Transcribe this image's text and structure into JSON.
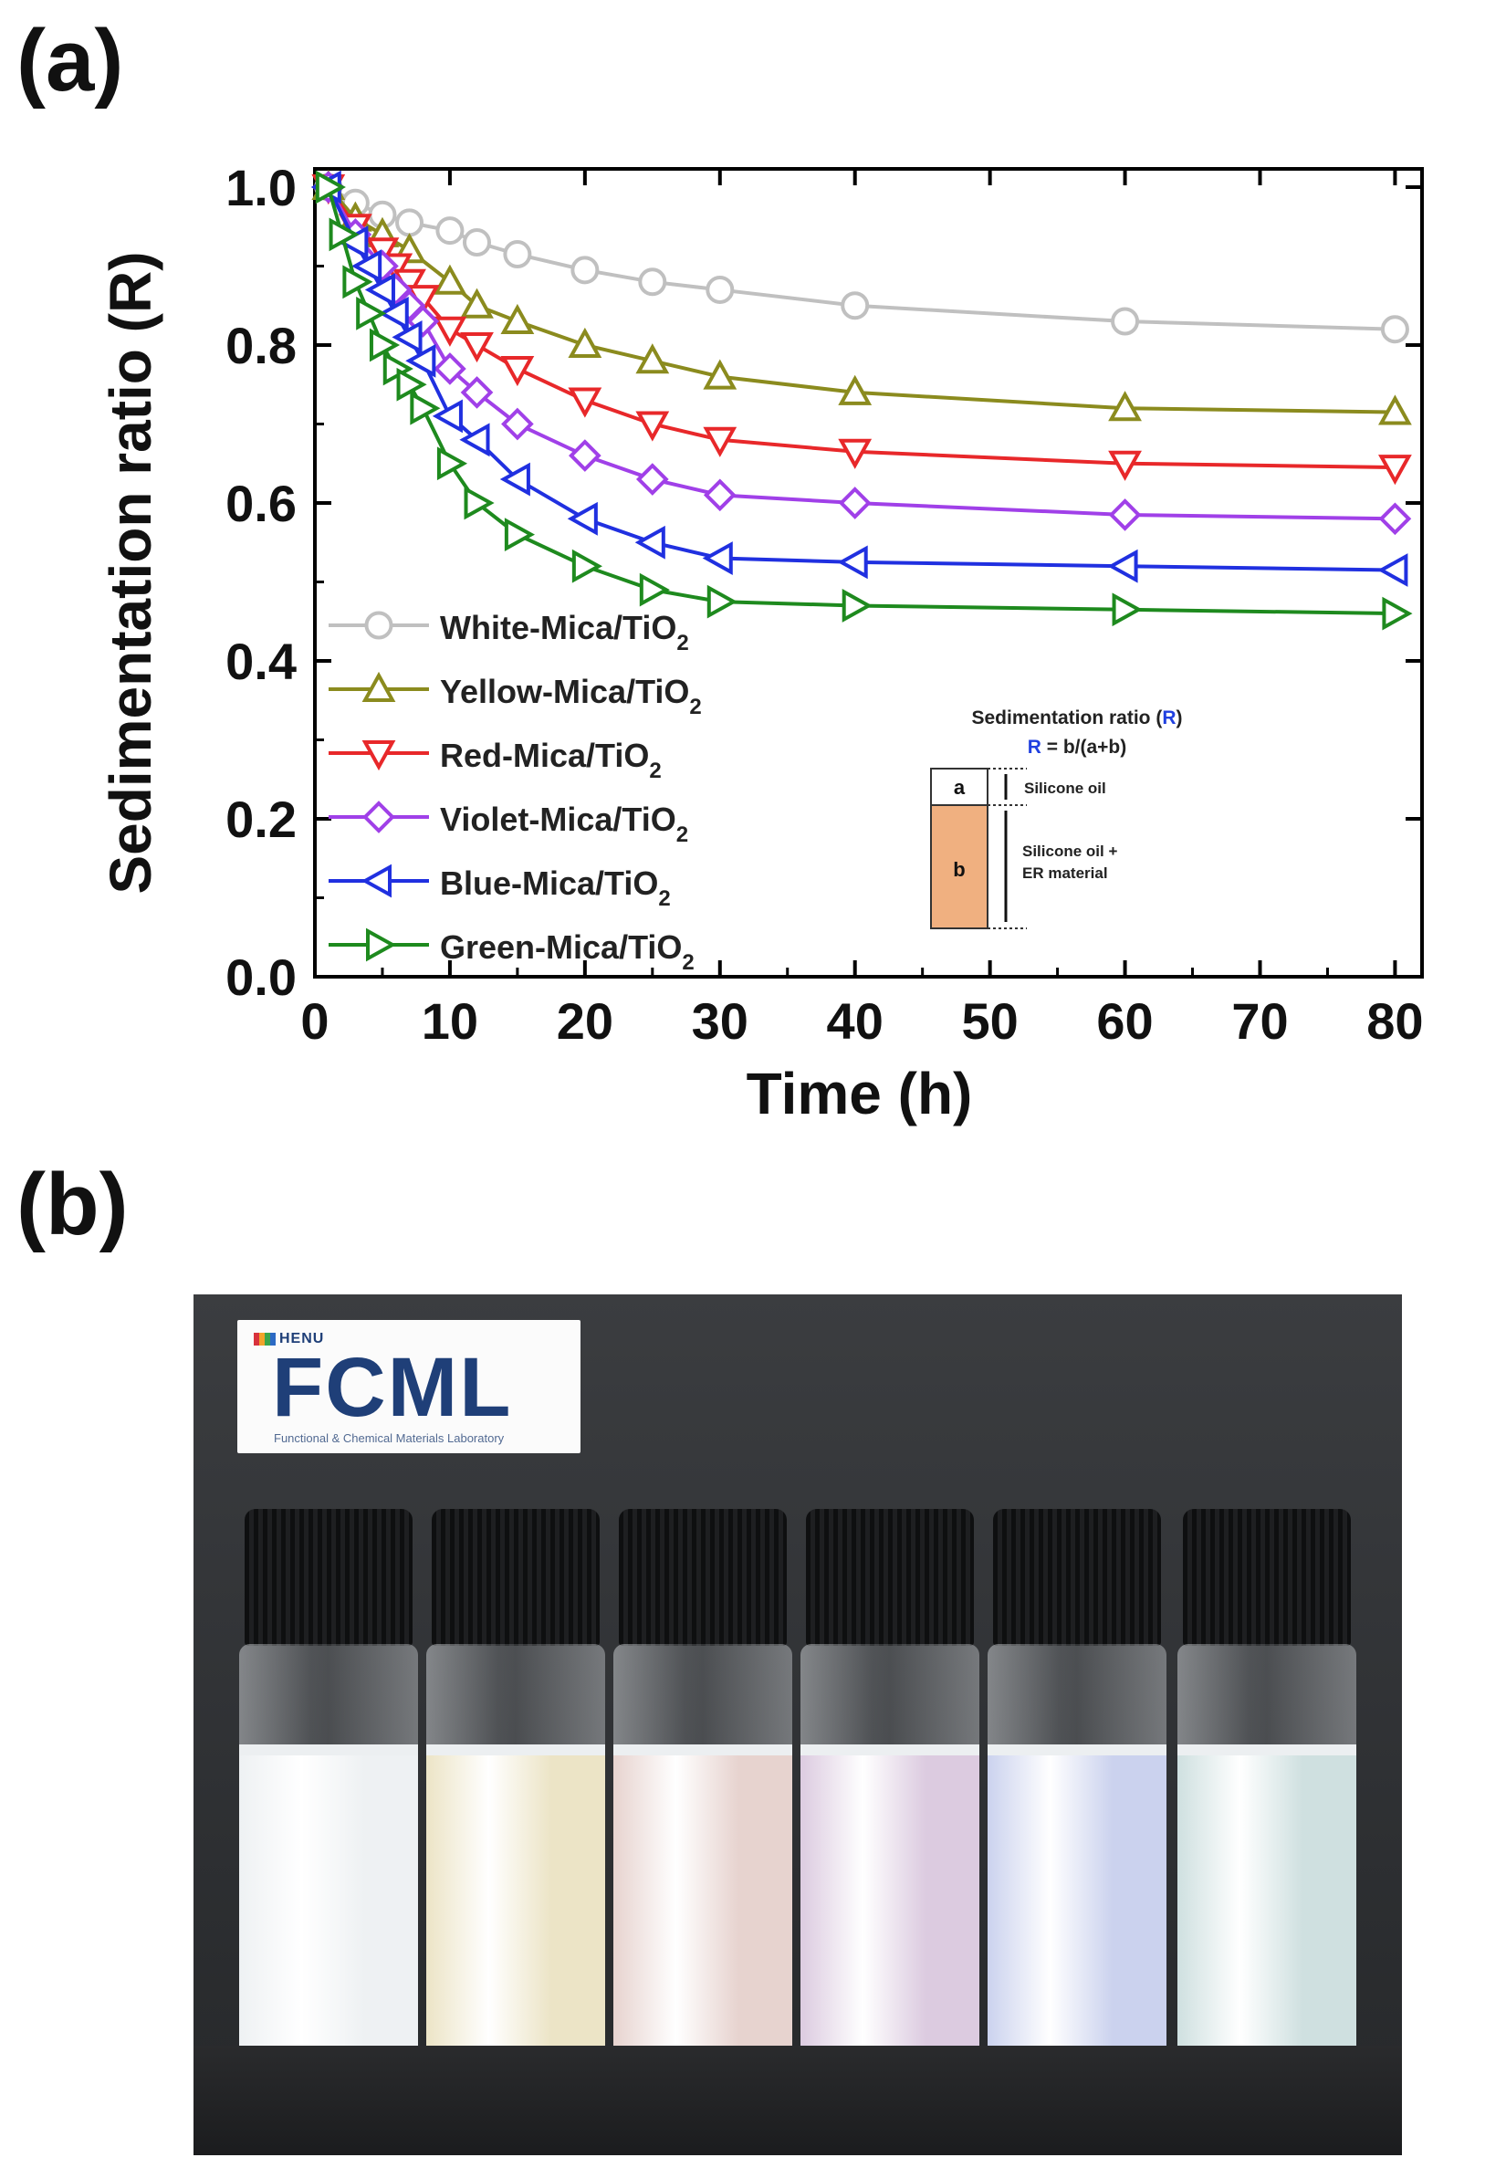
{
  "panel_a_label": "(a)",
  "panel_b_label": "(b)",
  "chart_data": {
    "type": "line",
    "xlabel": "Time (h)",
    "ylabel": "Sedimentation ratio (R)",
    "xlim": [
      0,
      82
    ],
    "ylim": [
      0,
      1.0
    ],
    "xticks": [
      0,
      10,
      20,
      30,
      40,
      50,
      60,
      70,
      80
    ],
    "xtick_labels": [
      "0",
      "10",
      "20",
      "30",
      "40",
      "50",
      "60",
      "70",
      "80"
    ],
    "yticks": [
      0,
      0.2,
      0.4,
      0.6,
      0.8,
      1.0
    ],
    "ytick_labels": [
      "0.0",
      "0.2",
      "0.4",
      "0.6",
      "0.8",
      "1.0"
    ],
    "legend_position": "lower-left",
    "series": [
      {
        "name": "White-Mica/TiO",
        "sub": "2",
        "color": "#c0c0c0",
        "marker": "circle",
        "x": [
          1,
          3,
          5,
          7,
          10,
          12,
          15,
          20,
          25,
          30,
          40,
          60,
          80
        ],
        "y": [
          1.0,
          0.98,
          0.965,
          0.955,
          0.945,
          0.93,
          0.915,
          0.895,
          0.88,
          0.87,
          0.85,
          0.83,
          0.82
        ]
      },
      {
        "name": "Yellow-Mica/TiO",
        "sub": "2",
        "color": "#8b8b1e",
        "marker": "triangle-up",
        "x": [
          1,
          3,
          5,
          7,
          10,
          12,
          15,
          20,
          25,
          30,
          40,
          60,
          80
        ],
        "y": [
          1.0,
          0.96,
          0.94,
          0.92,
          0.88,
          0.85,
          0.83,
          0.8,
          0.78,
          0.76,
          0.74,
          0.72,
          0.715
        ]
      },
      {
        "name": "Red-Mica/TiO",
        "sub": "2",
        "color": "#e8282a",
        "marker": "triangle-down",
        "x": [
          1,
          3,
          5,
          6,
          7,
          8,
          10,
          12,
          15,
          20,
          25,
          30,
          40,
          60,
          80
        ],
        "y": [
          1.0,
          0.95,
          0.92,
          0.9,
          0.88,
          0.86,
          0.82,
          0.8,
          0.77,
          0.73,
          0.7,
          0.68,
          0.665,
          0.65,
          0.645
        ]
      },
      {
        "name": "Violet-Mica/TiO",
        "sub": "2",
        "color": "#a040e8",
        "marker": "diamond",
        "x": [
          1,
          3,
          5,
          6,
          7,
          8,
          10,
          12,
          15,
          20,
          25,
          30,
          40,
          60,
          80
        ],
        "y": [
          1.0,
          0.94,
          0.9,
          0.87,
          0.85,
          0.83,
          0.77,
          0.74,
          0.7,
          0.66,
          0.63,
          0.61,
          0.6,
          0.585,
          0.58
        ]
      },
      {
        "name": "Blue-Mica/TiO",
        "sub": "2",
        "color": "#2030e0",
        "marker": "triangle-left",
        "x": [
          1,
          3,
          4,
          5,
          6,
          7,
          8,
          10,
          12,
          15,
          20,
          25,
          30,
          40,
          60,
          80
        ],
        "y": [
          1.0,
          0.93,
          0.9,
          0.87,
          0.84,
          0.81,
          0.78,
          0.71,
          0.68,
          0.63,
          0.58,
          0.55,
          0.53,
          0.525,
          0.52,
          0.515
        ]
      },
      {
        "name": "Green-Mica/TiO",
        "sub": "2",
        "color": "#1e8a1e",
        "marker": "triangle-right",
        "x": [
          1,
          2,
          3,
          4,
          5,
          6,
          7,
          8,
          10,
          12,
          15,
          20,
          25,
          30,
          40,
          60,
          80
        ],
        "y": [
          1.0,
          0.94,
          0.88,
          0.84,
          0.8,
          0.77,
          0.75,
          0.72,
          0.65,
          0.6,
          0.56,
          0.52,
          0.49,
          0.475,
          0.47,
          0.465,
          0.46
        ]
      }
    ],
    "inset": {
      "title_text": "Sedimentation ratio (",
      "title_R": "R",
      "title_close": ")",
      "formula_R": "R",
      "formula_rest": " = b/(a+b)",
      "box_a": "a",
      "box_b": "b",
      "label_a": "Silicone oil",
      "label_b_line1": "Silicone oil +",
      "label_b_line2": "ER material",
      "accent": "#2040e0",
      "fill_b": "#f0b080"
    }
  },
  "photo": {
    "logo_top": "HENU",
    "logo_main": "FCML",
    "logo_sub": "Functional & Chemical Materials Laboratory",
    "vial_colors": [
      "#eef1f3",
      "#ece4c6",
      "#e7d3cf",
      "#dccbe0",
      "#cbd2ee",
      "#cfe0e0"
    ]
  }
}
